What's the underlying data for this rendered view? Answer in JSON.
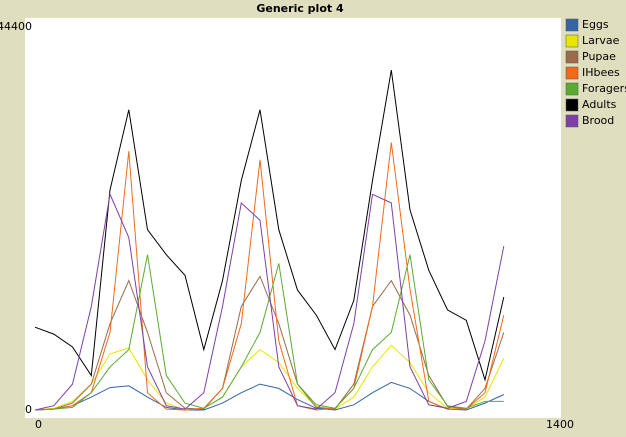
{
  "chart_data": {
    "type": "line",
    "title": "Generic plot 4",
    "x": [
      0,
      50,
      100,
      150,
      200,
      250,
      300,
      350,
      400,
      450,
      500,
      550,
      600,
      650,
      700,
      750,
      800,
      850,
      900,
      950,
      1000,
      1050,
      1100,
      1150,
      1200,
      1250
    ],
    "xlim": [
      0,
      1400
    ],
    "xticks": [
      0,
      1400
    ],
    "ylim": [
      0,
      44400
    ],
    "yticks": [
      0,
      44400
    ],
    "grid": false,
    "legend": "right",
    "series": [
      {
        "name": "Eggs",
        "color": "#3465a4",
        "values": [
          0,
          100,
          500,
          1500,
          2600,
          2800,
          1500,
          300,
          0,
          0,
          800,
          2000,
          3000,
          2500,
          1200,
          200,
          0,
          600,
          2000,
          3200,
          2500,
          1000,
          100,
          0,
          800,
          1800
        ]
      },
      {
        "name": "Larvae",
        "color": "#e6e600",
        "values": [
          0,
          200,
          1000,
          3000,
          6500,
          7200,
          3500,
          800,
          0,
          200,
          1500,
          5000,
          7000,
          5500,
          2500,
          400,
          100,
          1500,
          5000,
          7500,
          5500,
          2000,
          200,
          100,
          1500,
          6000
        ]
      },
      {
        "name": "Pupae",
        "color": "#9c6b4a",
        "values": [
          0,
          100,
          800,
          3000,
          10000,
          15000,
          9000,
          2000,
          200,
          100,
          2500,
          12000,
          15500,
          10000,
          3000,
          300,
          100,
          3000,
          12000,
          15000,
          11000,
          4000,
          400,
          100,
          2500,
          9000
        ]
      },
      {
        "name": "IHbees",
        "color": "#f06a1a",
        "values": [
          0,
          100,
          500,
          2000,
          9000,
          30000,
          2000,
          100,
          0,
          200,
          2500,
          10000,
          29000,
          8000,
          500,
          0,
          200,
          2500,
          12000,
          31000,
          14000,
          1000,
          100,
          100,
          2000,
          11000
        ]
      },
      {
        "name": "Foragers",
        "color": "#5aab32",
        "values": [
          0,
          100,
          300,
          2000,
          5000,
          7000,
          18000,
          4000,
          800,
          200,
          1500,
          5000,
          9000,
          17000,
          3000,
          600,
          200,
          2500,
          7000,
          9000,
          18000,
          3500,
          500,
          200,
          1000,
          1000
        ]
      },
      {
        "name": "Adults",
        "color": "#000000",
        "values": [
          9600,
          8800,
          7300,
          4000,
          25500,
          34800,
          20900,
          18000,
          15600,
          7000,
          15000,
          26600,
          34800,
          20900,
          13900,
          11000,
          7000,
          12700,
          26600,
          39400,
          23200,
          16200,
          11600,
          10400,
          3500,
          13100
        ]
      },
      {
        "name": "Brood",
        "color": "#7e3fa8",
        "values": [
          0,
          500,
          3000,
          12000,
          25000,
          20000,
          5000,
          500,
          100,
          2000,
          12000,
          24000,
          22000,
          5000,
          500,
          100,
          2000,
          10000,
          25000,
          24000,
          5000,
          600,
          200,
          1000,
          8000,
          19000
        ]
      }
    ]
  }
}
